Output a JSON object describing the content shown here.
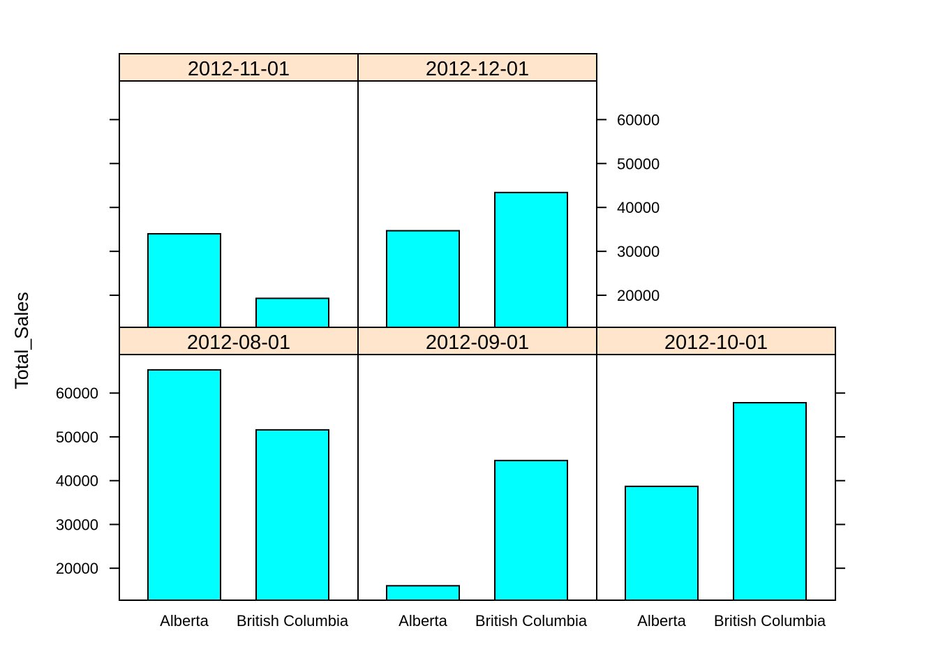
{
  "chart_data": {
    "type": "bar",
    "ylabel": "Total_Sales",
    "xlabel": "",
    "categories": [
      "Alberta",
      "British Columbia"
    ],
    "ylim": [
      12700,
      68800
    ],
    "yticks": [
      20000,
      30000,
      40000,
      50000,
      60000
    ],
    "colors": {
      "bar_fill": "#00ffff",
      "strip_fill": "#ffe5cc",
      "stroke": "#000000"
    },
    "panels": [
      {
        "date": "2012-08-01",
        "values": [
          65300,
          51600
        ]
      },
      {
        "date": "2012-09-01",
        "values": [
          16000,
          44600
        ]
      },
      {
        "date": "2012-10-01",
        "values": [
          38700,
          57800
        ]
      },
      {
        "date": "2012-11-01",
        "values": [
          34000,
          19300
        ]
      },
      {
        "date": "2012-12-01",
        "values": [
          34700,
          43400
        ]
      }
    ]
  }
}
